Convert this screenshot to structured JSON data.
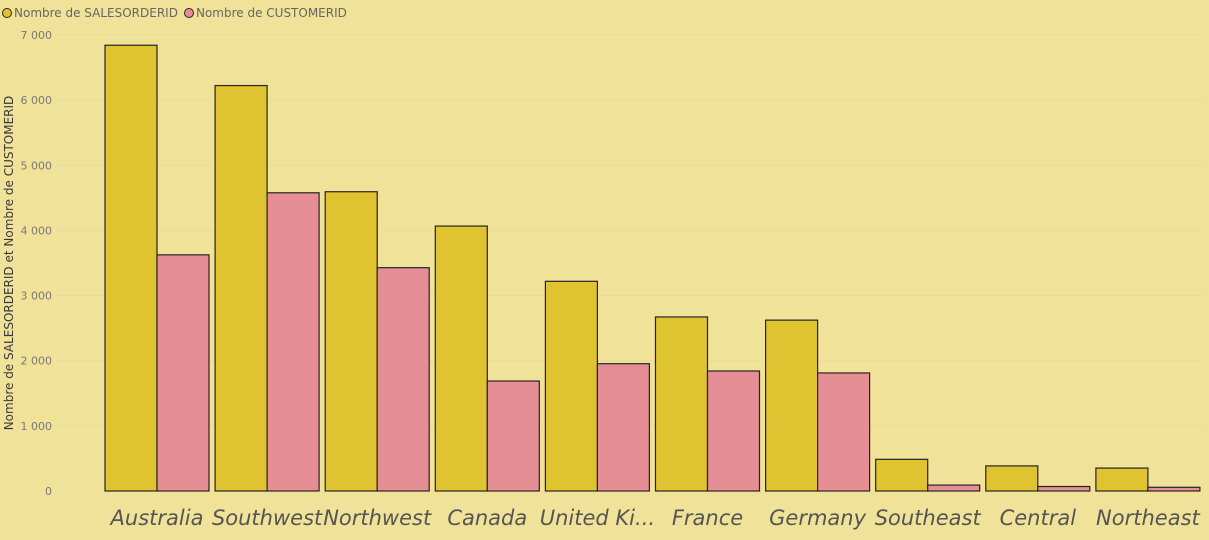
{
  "legend": {
    "items": [
      {
        "label": "Nombre de SALESORDERID",
        "color": "#E0C331"
      },
      {
        "label": "Nombre de CUSTOMERID",
        "color": "#E68E96"
      }
    ]
  },
  "chart_data": {
    "type": "bar",
    "title": "",
    "xlabel": "",
    "ylabel": "Nombre de SALESORDERID et Nombre de CUSTOMERID",
    "categories": [
      "Australia",
      "Southwest",
      "Northwest",
      "Canada",
      "United Ki...",
      "France",
      "Germany",
      "Southeast",
      "Central",
      "Northeast"
    ],
    "series": [
      {
        "name": "Nombre de SALESORDERID",
        "color": "#E0C331",
        "values": [
          6843,
          6224,
          4594,
          4067,
          3219,
          2672,
          2623,
          486,
          385,
          352
        ]
      },
      {
        "name": "Nombre de CUSTOMERID",
        "color": "#E68E96",
        "values": [
          3625,
          4578,
          3428,
          1688,
          1954,
          1842,
          1812,
          91,
          69,
          57
        ]
      }
    ],
    "ylim": [
      0,
      7000
    ],
    "yticks": [
      0,
      1000,
      2000,
      3000,
      4000,
      5000,
      6000,
      7000
    ],
    "ytick_labels": [
      "0",
      "1 000",
      "2 000",
      "3 000",
      "4 000",
      "5 000",
      "6 000",
      "7 000"
    ],
    "grid": true,
    "legend_position": "top-left"
  }
}
